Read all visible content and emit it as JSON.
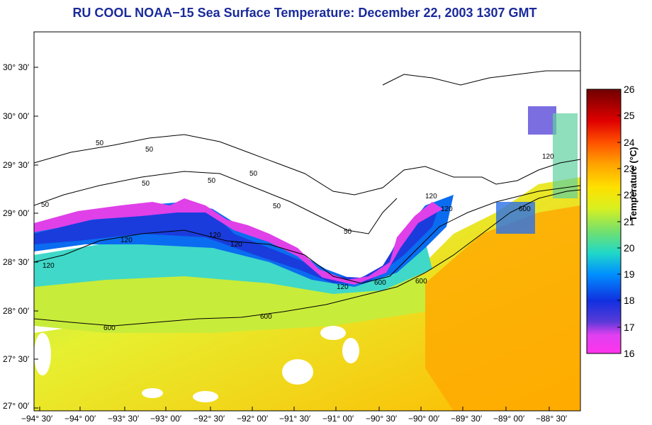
{
  "title": "RU COOL  NOAA−15  Sea Surface Temperature:  December 22, 2003 1307 GMT",
  "map": {
    "lat_ticks": [
      "30° 30′",
      "30° 00′",
      "29° 30′",
      "29° 00′",
      "28° 30′",
      "28° 00′",
      "27° 30′",
      "27° 00′"
    ],
    "lon_ticks": [
      "−94° 30′",
      "−94° 00′",
      "−93° 30′",
      "−93° 00′",
      "−92° 30′",
      "−92° 00′",
      "−91° 30′",
      "−91° 00′",
      "−90° 30′",
      "−90° 00′",
      "−89° 30′",
      "−89° 00′",
      "−88° 30′"
    ],
    "contour_labels": [
      "50",
      "50",
      "50",
      "50",
      "50",
      "50",
      "50",
      "50",
      "120",
      "120",
      "120",
      "120",
      "120",
      "120",
      "120",
      "120",
      "600",
      "600",
      "600",
      "600",
      "600"
    ]
  },
  "colorbar": {
    "title": "Temperature (°C)",
    "ticks": [
      "26",
      "25",
      "24",
      "23",
      "22",
      "21",
      "20",
      "19",
      "18",
      "17",
      "16"
    ],
    "colors": [
      "#7a0000",
      "#cc0000",
      "#ff3300",
      "#ff8000",
      "#ffc000",
      "#f2ef00",
      "#a8e83a",
      "#42e0a6",
      "#00b8ff",
      "#1040e0",
      "#6a38d8",
      "#ff33ee"
    ]
  }
}
